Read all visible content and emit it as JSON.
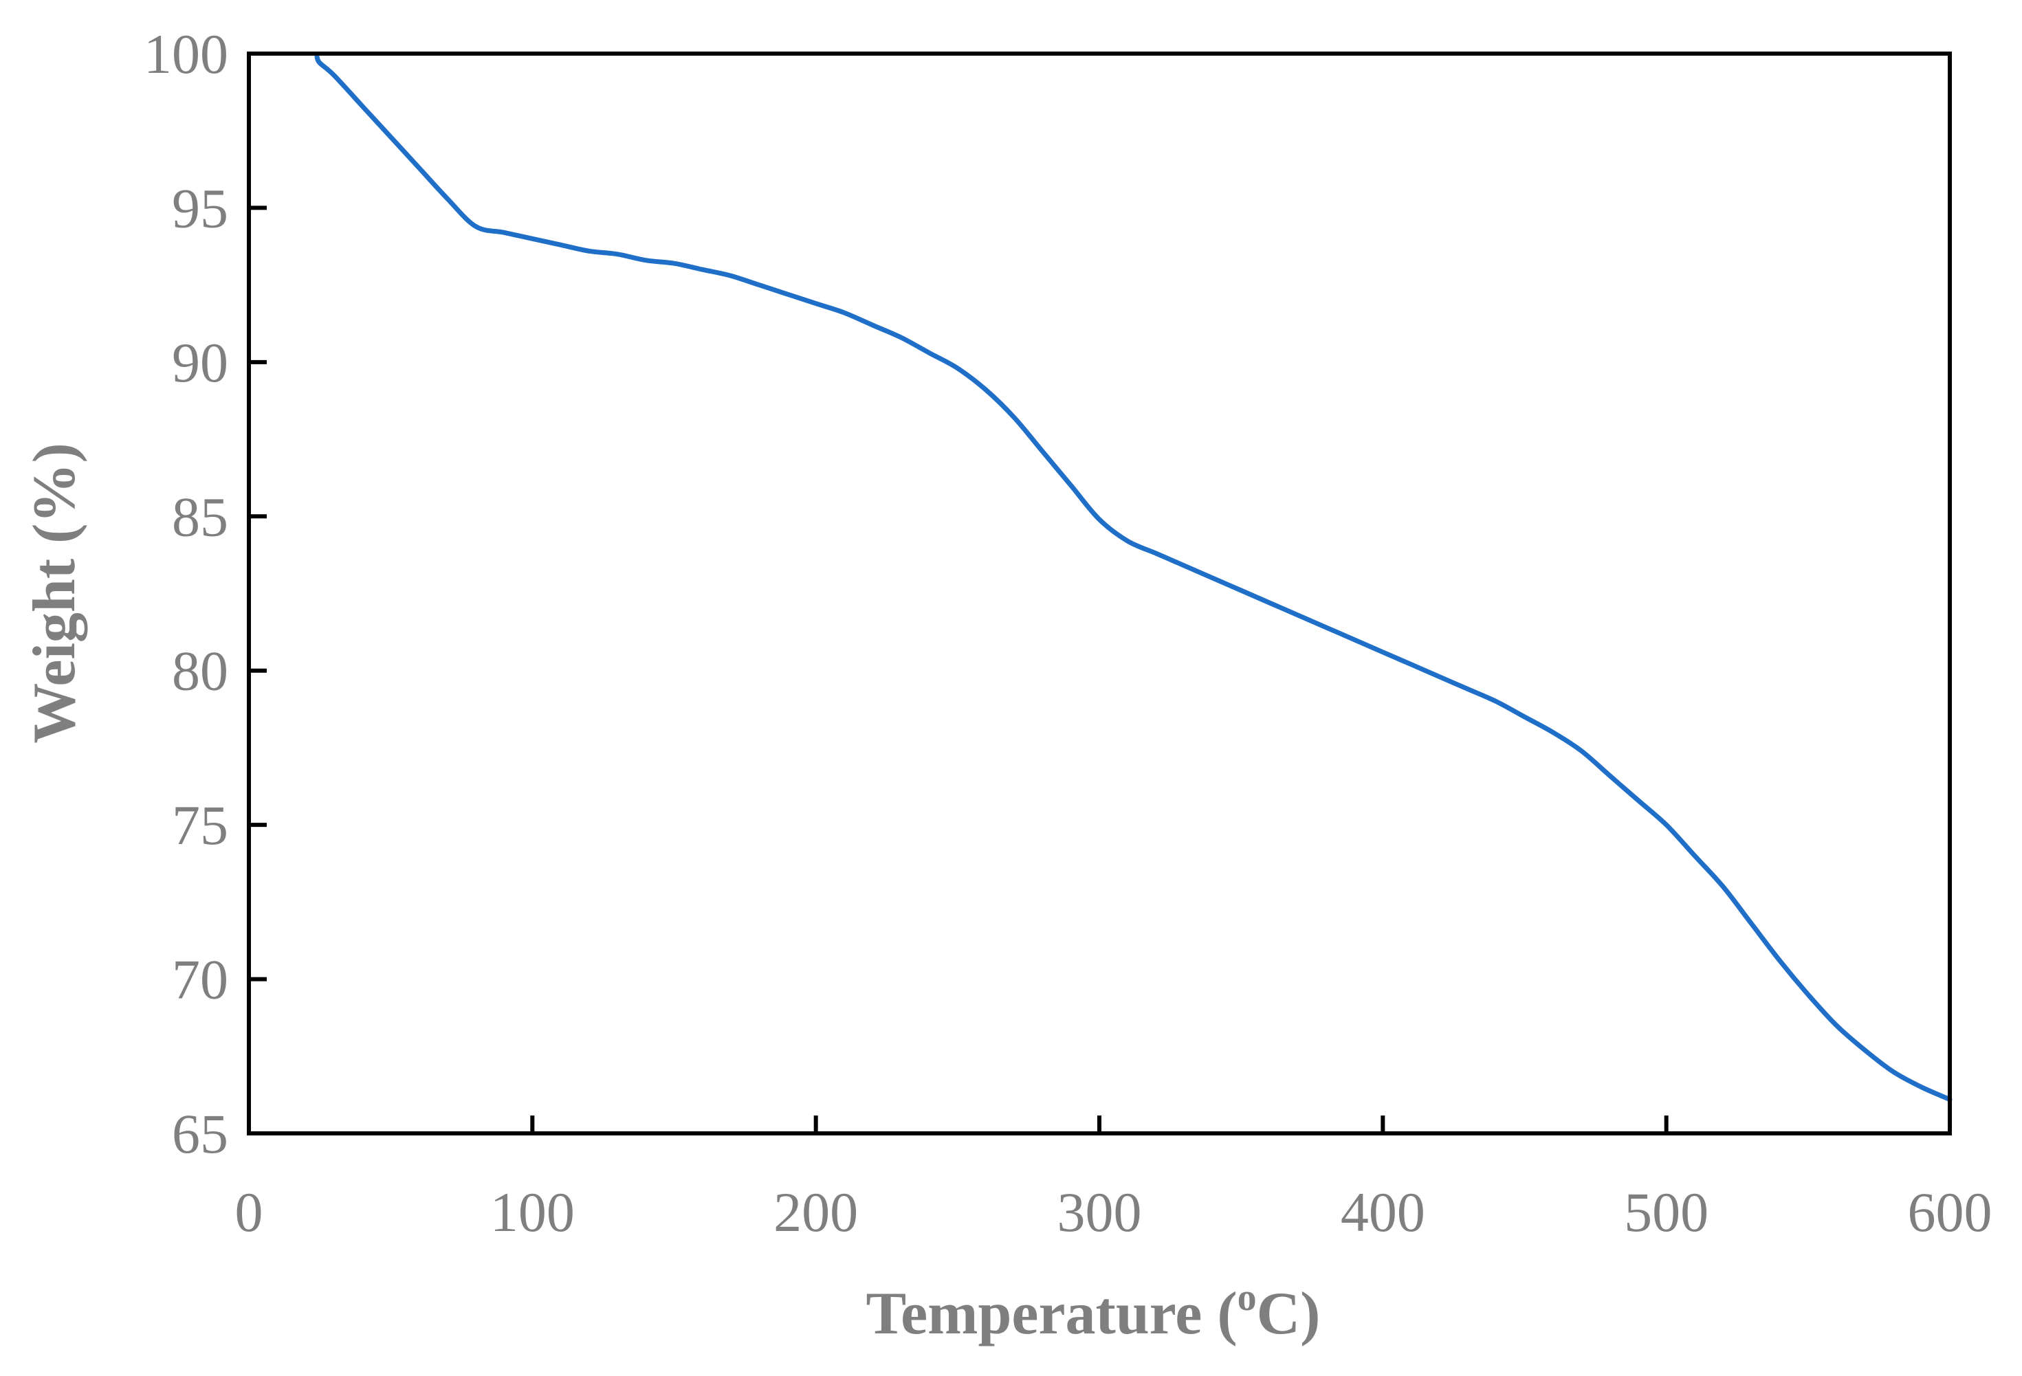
{
  "chart_data": {
    "type": "line",
    "title": "",
    "xlabel": "Temperature (",
    "xlabel_sup": "o",
    "xlabel_suffix": "C)",
    "ylabel": "Weight (%)",
    "xlim": [
      0,
      600
    ],
    "ylim": [
      65,
      100
    ],
    "xticks": [
      "0",
      "100",
      "200",
      "300",
      "400",
      "500",
      "600"
    ],
    "yticks": [
      "65",
      "70",
      "75",
      "80",
      "85",
      "90",
      "95",
      "100"
    ],
    "grid": false,
    "legend": "none",
    "series": [
      {
        "color": "#1f6fc8",
        "x": [
          24,
          25,
          30,
          40,
          50,
          60,
          70,
          80,
          90,
          100,
          110,
          120,
          130,
          140,
          150,
          160,
          170,
          180,
          190,
          200,
          210,
          220,
          230,
          240,
          250,
          260,
          270,
          280,
          290,
          300,
          310,
          320,
          330,
          340,
          350,
          360,
          370,
          380,
          390,
          400,
          410,
          420,
          430,
          440,
          450,
          460,
          470,
          480,
          490,
          500,
          510,
          520,
          530,
          540,
          550,
          560,
          570,
          580,
          590,
          600
        ],
        "y": [
          99.9,
          99.7,
          99.3,
          98.3,
          97.3,
          96.3,
          95.3,
          94.4,
          94.2,
          94.0,
          93.8,
          93.6,
          93.5,
          93.3,
          93.2,
          93.0,
          92.8,
          92.5,
          92.2,
          91.9,
          91.6,
          91.2,
          90.8,
          90.3,
          89.8,
          89.1,
          88.2,
          87.1,
          86.0,
          84.9,
          84.2,
          83.8,
          83.4,
          83.0,
          82.6,
          82.2,
          81.8,
          81.4,
          81.0,
          80.6,
          80.2,
          79.8,
          79.4,
          79.0,
          78.5,
          78.0,
          77.4,
          76.6,
          75.8,
          75.0,
          74.0,
          73.0,
          71.8,
          70.6,
          69.5,
          68.5,
          67.7,
          67.0,
          66.5,
          66.1
        ]
      }
    ]
  }
}
